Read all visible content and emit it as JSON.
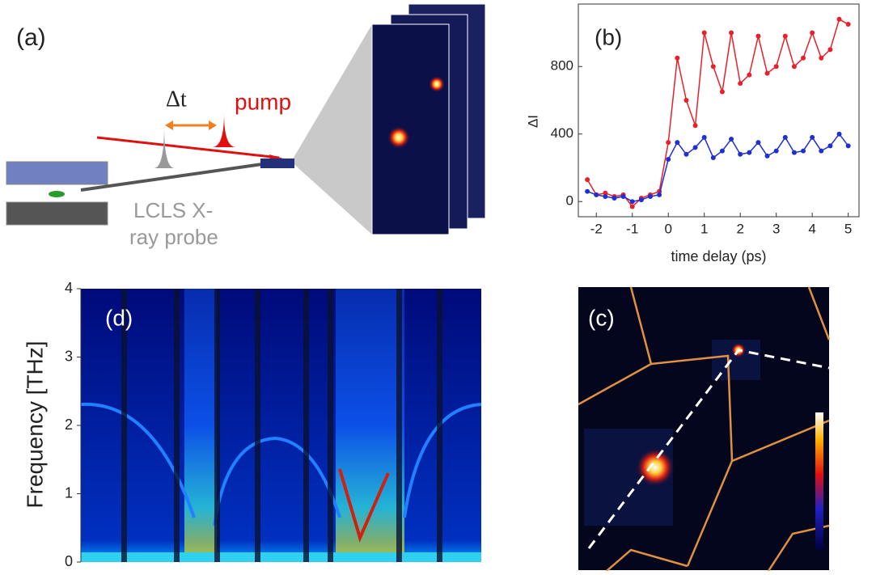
{
  "diagram": {
    "panel_label": "(a)",
    "delta_t": "Δt",
    "pump": "pump",
    "probe_lines": [
      "LCLS X-",
      "ray probe"
    ]
  },
  "image_panel": {
    "panel_label": "(c)"
  },
  "chart_data": [
    {
      "type": "line",
      "panel_label": "(b)",
      "x_label": "time delay (ps)",
      "y_label": "ΔI",
      "x": [
        -2.25,
        -2,
        -1.75,
        -1.5,
        -1.25,
        -1,
        -0.75,
        -0.5,
        -0.25,
        0,
        0.25,
        0.5,
        0.75,
        1,
        1.25,
        1.5,
        1.75,
        2,
        2.25,
        2.5,
        2.75,
        3,
        3.25,
        3.5,
        3.75,
        4,
        4.25,
        4.5,
        4.75,
        5
      ],
      "series": [
        {
          "color": "#e8202a",
          "values": [
            130,
            40,
            50,
            30,
            40,
            -30,
            20,
            40,
            60,
            350,
            850,
            600,
            450,
            1000,
            800,
            650,
            1000,
            700,
            750,
            980,
            760,
            800,
            980,
            800,
            850,
            1000,
            850,
            900,
            1080,
            1050
          ]
        },
        {
          "color": "#2030d0",
          "values": [
            60,
            40,
            30,
            20,
            30,
            0,
            10,
            30,
            40,
            250,
            350,
            280,
            320,
            380,
            260,
            300,
            370,
            280,
            290,
            350,
            270,
            300,
            380,
            290,
            300,
            380,
            300,
            330,
            400,
            330
          ]
        }
      ],
      "xlim": [
        -2.5,
        5.3
      ],
      "ylim": [
        -90,
        1170
      ],
      "xticks": [
        -2,
        -1,
        0,
        1,
        2,
        3,
        4,
        5
      ],
      "yticks": [
        0,
        400,
        800
      ]
    },
    {
      "type": "spectrogram",
      "panel_label": "(d)",
      "y_label": "Frequency [THz]",
      "ylim": [
        0,
        4
      ],
      "yticks": [
        0,
        1,
        2,
        3,
        4
      ]
    }
  ]
}
